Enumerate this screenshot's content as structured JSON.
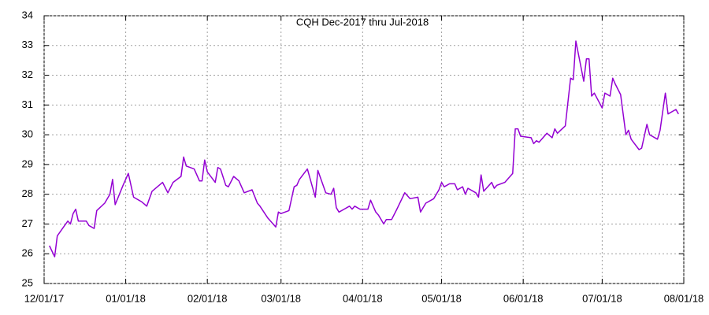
{
  "chart_data": {
    "type": "line",
    "title": "CQH Dec-2017 thru Jul-2018",
    "x": [
      "2017-12-03",
      "2017-12-05",
      "2017-12-06",
      "2017-12-08",
      "2017-12-10",
      "2017-12-11",
      "2017-12-12",
      "2017-12-13",
      "2017-12-14",
      "2017-12-17",
      "2017-12-18",
      "2017-12-20",
      "2017-12-21",
      "2017-12-24",
      "2017-12-26",
      "2017-12-27",
      "2017-12-28",
      "2017-12-31",
      "2018-01-02",
      "2018-01-04",
      "2018-01-07",
      "2018-01-09",
      "2018-01-11",
      "2018-01-15",
      "2018-01-17",
      "2018-01-19",
      "2018-01-22",
      "2018-01-23",
      "2018-01-24",
      "2018-01-27",
      "2018-01-29",
      "2018-01-30",
      "2018-01-31",
      "2018-02-01",
      "2018-02-04",
      "2018-02-05",
      "2018-02-06",
      "2018-02-08",
      "2018-02-09",
      "2018-02-11",
      "2018-02-13",
      "2018-02-15",
      "2018-02-18",
      "2018-02-20",
      "2018-02-21",
      "2018-02-24",
      "2018-02-27",
      "2018-02-28",
      "2018-03-01",
      "2018-03-04",
      "2018-03-06",
      "2018-03-07",
      "2018-03-08",
      "2018-03-11",
      "2018-03-14",
      "2018-03-15",
      "2018-03-18",
      "2018-03-20",
      "2018-03-21",
      "2018-03-22",
      "2018-03-23",
      "2018-03-25",
      "2018-03-27",
      "2018-03-28",
      "2018-03-29",
      "2018-03-31",
      "2018-04-03",
      "2018-04-04",
      "2018-04-06",
      "2018-04-07",
      "2018-04-09",
      "2018-04-10",
      "2018-04-12",
      "2018-04-14",
      "2018-04-17",
      "2018-04-19",
      "2018-04-22",
      "2018-04-23",
      "2018-04-25",
      "2018-04-28",
      "2018-04-30",
      "2018-05-01",
      "2018-05-02",
      "2018-05-04",
      "2018-05-06",
      "2018-05-07",
      "2018-05-09",
      "2018-05-10",
      "2018-05-11",
      "2018-05-14",
      "2018-05-15",
      "2018-05-16",
      "2018-05-17",
      "2018-05-20",
      "2018-05-21",
      "2018-05-22",
      "2018-05-25",
      "2018-05-28",
      "2018-05-29",
      "2018-05-30",
      "2018-05-31",
      "2018-06-04",
      "2018-06-05",
      "2018-06-06",
      "2018-06-07",
      "2018-06-10",
      "2018-06-12",
      "2018-06-13",
      "2018-06-14",
      "2018-06-17",
      "2018-06-19",
      "2018-06-20",
      "2018-06-21",
      "2018-06-24",
      "2018-06-25",
      "2018-06-26",
      "2018-06-27",
      "2018-06-28",
      "2018-07-01",
      "2018-07-02",
      "2018-07-04",
      "2018-07-05",
      "2018-07-06",
      "2018-07-08",
      "2018-07-10",
      "2018-07-11",
      "2018-07-12",
      "2018-07-15",
      "2018-07-16",
      "2018-07-18",
      "2018-07-19",
      "2018-07-22",
      "2018-07-23",
      "2018-07-25",
      "2018-07-26",
      "2018-07-29",
      "2018-07-30"
    ],
    "series": [
      {
        "color": "#9400d3",
        "values": [
          26.27,
          25.9,
          26.6,
          26.85,
          27.1,
          27.0,
          27.35,
          27.5,
          27.1,
          27.1,
          26.95,
          26.85,
          27.45,
          27.7,
          28.0,
          28.5,
          27.65,
          28.3,
          28.7,
          27.9,
          27.75,
          27.6,
          28.1,
          28.4,
          28.05,
          28.4,
          28.6,
          29.25,
          28.95,
          28.85,
          28.45,
          28.45,
          29.15,
          28.75,
          28.4,
          28.9,
          28.85,
          28.3,
          28.25,
          28.6,
          28.45,
          28.05,
          28.15,
          27.7,
          27.6,
          27.2,
          26.9,
          27.4,
          27.35,
          27.45,
          28.25,
          28.3,
          28.5,
          28.85,
          27.9,
          28.8,
          28.05,
          28.0,
          28.2,
          27.55,
          27.4,
          27.5,
          27.6,
          27.5,
          27.6,
          27.5,
          27.5,
          27.8,
          27.4,
          27.3,
          27.0,
          27.15,
          27.15,
          27.5,
          28.05,
          27.85,
          27.9,
          27.4,
          27.7,
          27.85,
          28.15,
          28.4,
          28.25,
          28.35,
          28.35,
          28.15,
          28.25,
          28.0,
          28.2,
          28.05,
          27.9,
          28.65,
          28.1,
          28.4,
          28.2,
          28.3,
          28.4,
          28.7,
          30.2,
          30.2,
          29.95,
          29.9,
          29.7,
          29.8,
          29.75,
          30.05,
          29.9,
          30.2,
          30.05,
          30.3,
          31.9,
          31.85,
          33.15,
          31.8,
          32.55,
          32.55,
          31.3,
          31.4,
          30.9,
          31.4,
          31.3,
          31.9,
          31.7,
          31.35,
          30.0,
          30.15,
          29.85,
          29.5,
          29.55,
          30.35,
          30.0,
          29.85,
          30.15,
          31.4,
          30.7,
          30.85,
          30.7
        ]
      }
    ],
    "xlim": [
      "2017-12-01",
      "2018-08-01"
    ],
    "xticks": [
      {
        "value": "2017-12-01",
        "label": "12/01/17"
      },
      {
        "value": "2018-01-01",
        "label": "01/01/18"
      },
      {
        "value": "2018-02-01",
        "label": "02/01/18"
      },
      {
        "value": "2018-03-01",
        "label": "03/01/18"
      },
      {
        "value": "2018-04-01",
        "label": "04/01/18"
      },
      {
        "value": "2018-05-01",
        "label": "05/01/18"
      },
      {
        "value": "2018-06-01",
        "label": "06/01/18"
      },
      {
        "value": "2018-07-01",
        "label": "07/01/18"
      },
      {
        "value": "2018-08-01",
        "label": "08/01/18"
      }
    ],
    "ylim": [
      25,
      34
    ],
    "yticks": [
      25,
      26,
      27,
      28,
      29,
      30,
      31,
      32,
      33,
      34
    ],
    "grid": true
  }
}
